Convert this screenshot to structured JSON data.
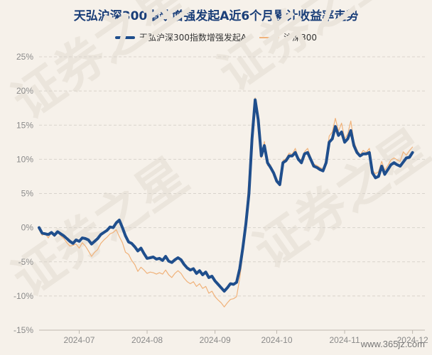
{
  "chart_data": {
    "type": "line",
    "title": "天弘沪深300指数增强发起A近6个月累计收益率走势",
    "ylim": [
      -15,
      25
    ],
    "yticks": [
      -15,
      -10,
      -5,
      0,
      5,
      10,
      15,
      20,
      25
    ],
    "ytick_labels": [
      "-15%",
      "-10%",
      "-5%",
      "0%",
      "5%",
      "10%",
      "15%",
      "20%",
      "25%"
    ],
    "x_ticks": [
      {
        "label": "2024-07",
        "x": 13
      },
      {
        "label": "2024-08",
        "x": 35
      },
      {
        "label": "2024-09",
        "x": 57
      },
      {
        "label": "2024-10",
        "x": 77
      },
      {
        "label": "2024-11",
        "x": 99
      },
      {
        "label": "2024-12",
        "x": 121
      }
    ],
    "x_range": [
      0,
      125
    ],
    "grid": true,
    "legend_position": "top",
    "series": [
      {
        "name": "天弘沪深300指数增强发起A",
        "color": "#1f4e8c",
        "points": [
          [
            0,
            0
          ],
          [
            1,
            -0.8
          ],
          [
            2,
            -0.9
          ],
          [
            3,
            -1.0
          ],
          [
            4,
            -0.7
          ],
          [
            5,
            -1.1
          ],
          [
            6,
            -0.6
          ],
          [
            7,
            -0.9
          ],
          [
            8,
            -1.2
          ],
          [
            9,
            -1.6
          ],
          [
            10,
            -2.0
          ],
          [
            11,
            -2.3
          ],
          [
            12,
            -1.8
          ],
          [
            13,
            -2.0
          ],
          [
            14,
            -1.5
          ],
          [
            15,
            -1.6
          ],
          [
            16,
            -1.8
          ],
          [
            17,
            -2.4
          ],
          [
            18,
            -2.0
          ],
          [
            19,
            -1.6
          ],
          [
            20,
            -1.0
          ],
          [
            21,
            -0.7
          ],
          [
            22,
            -0.4
          ],
          [
            23,
            0.1
          ],
          [
            24,
            0.0
          ],
          [
            25,
            0.7
          ],
          [
            26,
            1.1
          ],
          [
            27,
            0.0
          ],
          [
            28,
            -1.2
          ],
          [
            29,
            -2.1
          ],
          [
            30,
            -2.3
          ],
          [
            31,
            -2.8
          ],
          [
            32,
            -3.4
          ],
          [
            33,
            -3.0
          ],
          [
            34,
            -3.8
          ],
          [
            35,
            -4.5
          ],
          [
            36,
            -4.4
          ],
          [
            37,
            -4.3
          ],
          [
            38,
            -4.6
          ],
          [
            39,
            -4.5
          ],
          [
            40,
            -4.8
          ],
          [
            41,
            -4.2
          ],
          [
            42,
            -4.9
          ],
          [
            43,
            -5.1
          ],
          [
            44,
            -4.7
          ],
          [
            45,
            -4.4
          ],
          [
            46,
            -4.7
          ],
          [
            47,
            -5.4
          ],
          [
            48,
            -5.9
          ],
          [
            49,
            -6.2
          ],
          [
            50,
            -6.0
          ],
          [
            51,
            -6.7
          ],
          [
            52,
            -6.3
          ],
          [
            53,
            -6.9
          ],
          [
            54,
            -6.5
          ],
          [
            55,
            -7.3
          ],
          [
            56,
            -7.1
          ],
          [
            57,
            -7.8
          ],
          [
            58,
            -8.3
          ],
          [
            59,
            -8.8
          ],
          [
            60,
            -9.3
          ],
          [
            61,
            -8.8
          ],
          [
            62,
            -8.2
          ],
          [
            63,
            -8.3
          ],
          [
            64,
            -8.0
          ],
          [
            65,
            -6.0
          ],
          [
            66,
            -3.0
          ],
          [
            67,
            0.5
          ],
          [
            68,
            5.0
          ],
          [
            69,
            13.0
          ],
          [
            70,
            18.7
          ],
          [
            71,
            15.8
          ],
          [
            72,
            10.5
          ],
          [
            73,
            12.0
          ],
          [
            74,
            9.5
          ],
          [
            75,
            8.8
          ],
          [
            76,
            8.0
          ],
          [
            77,
            6.8
          ],
          [
            78,
            6.3
          ],
          [
            79,
            9.5
          ],
          [
            80,
            9.8
          ],
          [
            81,
            10.5
          ],
          [
            82,
            10.5
          ],
          [
            83,
            11.0
          ],
          [
            84,
            10.0
          ],
          [
            85,
            9.5
          ],
          [
            86,
            10.8
          ],
          [
            87,
            11.0
          ],
          [
            88,
            10.0
          ],
          [
            89,
            9.0
          ],
          [
            90,
            8.8
          ],
          [
            91,
            8.5
          ],
          [
            92,
            8.3
          ],
          [
            93,
            9.5
          ],
          [
            94,
            12.5
          ],
          [
            95,
            13.0
          ],
          [
            96,
            14.8
          ],
          [
            97,
            13.5
          ],
          [
            98,
            14.0
          ],
          [
            99,
            12.5
          ],
          [
            100,
            13.0
          ],
          [
            101,
            14.2
          ],
          [
            102,
            12.0
          ],
          [
            103,
            11.0
          ],
          [
            104,
            10.5
          ],
          [
            105,
            10.8
          ],
          [
            106,
            10.8
          ],
          [
            107,
            11.0
          ],
          [
            108,
            8.0
          ],
          [
            109,
            7.3
          ],
          [
            110,
            7.5
          ],
          [
            111,
            9.0
          ],
          [
            112,
            7.8
          ],
          [
            113,
            8.5
          ],
          [
            114,
            9.2
          ],
          [
            115,
            9.5
          ],
          [
            116,
            9.2
          ],
          [
            117,
            9.0
          ],
          [
            118,
            9.6
          ],
          [
            119,
            10.2
          ],
          [
            120,
            10.3
          ],
          [
            121,
            11.0
          ]
        ]
      },
      {
        "name": "沪深300",
        "color": "#f0b27a",
        "points": [
          [
            0,
            -0.3
          ],
          [
            1,
            -1.1
          ],
          [
            2,
            -0.9
          ],
          [
            3,
            -1.5
          ],
          [
            4,
            -0.7
          ],
          [
            5,
            -1.3
          ],
          [
            6,
            -0.6
          ],
          [
            7,
            -1.2
          ],
          [
            8,
            -1.6
          ],
          [
            9,
            -2.2
          ],
          [
            10,
            -2.7
          ],
          [
            11,
            -2.6
          ],
          [
            12,
            -2.4
          ],
          [
            13,
            -3.0
          ],
          [
            14,
            -2.2
          ],
          [
            15,
            -2.7
          ],
          [
            16,
            -3.4
          ],
          [
            17,
            -4.2
          ],
          [
            18,
            -3.6
          ],
          [
            19,
            -3.2
          ],
          [
            20,
            -2.3
          ],
          [
            21,
            -1.8
          ],
          [
            22,
            -1.4
          ],
          [
            23,
            -0.9
          ],
          [
            24,
            -0.7
          ],
          [
            25,
            -0.3
          ],
          [
            26,
            -1.3
          ],
          [
            27,
            -2.2
          ],
          [
            28,
            -3.6
          ],
          [
            29,
            -3.9
          ],
          [
            30,
            -4.8
          ],
          [
            31,
            -5.4
          ],
          [
            32,
            -6.4
          ],
          [
            33,
            -5.8
          ],
          [
            34,
            -6.2
          ],
          [
            35,
            -6.7
          ],
          [
            36,
            -6.5
          ],
          [
            37,
            -6.6
          ],
          [
            38,
            -6.8
          ],
          [
            39,
            -6.6
          ],
          [
            40,
            -6.8
          ],
          [
            41,
            -6.2
          ],
          [
            42,
            -6.9
          ],
          [
            43,
            -7.3
          ],
          [
            44,
            -6.7
          ],
          [
            45,
            -6.3
          ],
          [
            46,
            -6.7
          ],
          [
            47,
            -7.4
          ],
          [
            48,
            -7.9
          ],
          [
            49,
            -8.2
          ],
          [
            50,
            -7.9
          ],
          [
            51,
            -8.6
          ],
          [
            52,
            -8.2
          ],
          [
            53,
            -8.9
          ],
          [
            54,
            -8.6
          ],
          [
            55,
            -9.6
          ],
          [
            56,
            -9.3
          ],
          [
            57,
            -10.1
          ],
          [
            58,
            -10.6
          ],
          [
            59,
            -11.0
          ],
          [
            60,
            -11.6
          ],
          [
            61,
            -11.0
          ],
          [
            62,
            -10.5
          ],
          [
            63,
            -10.4
          ],
          [
            64,
            -10.1
          ],
          [
            65,
            -7.4
          ],
          [
            66,
            -3.9
          ],
          [
            67,
            1.1
          ],
          [
            68,
            7.4
          ],
          [
            69,
            15.0
          ],
          [
            70,
            19.0
          ],
          [
            71,
            15.0
          ],
          [
            72,
            10.2
          ],
          [
            73,
            12.6
          ],
          [
            74,
            9.1
          ],
          [
            75,
            9.2
          ],
          [
            76,
            7.6
          ],
          [
            77,
            6.6
          ],
          [
            78,
            6.1
          ],
          [
            79,
            9.8
          ],
          [
            80,
            10.1
          ],
          [
            81,
            10.9
          ],
          [
            82,
            10.7
          ],
          [
            83,
            11.6
          ],
          [
            84,
            10.2
          ],
          [
            85,
            9.9
          ],
          [
            86,
            11.1
          ],
          [
            87,
            11.6
          ],
          [
            88,
            10.3
          ],
          [
            89,
            9.3
          ],
          [
            90,
            9.1
          ],
          [
            91,
            8.8
          ],
          [
            92,
            8.6
          ],
          [
            93,
            10.0
          ],
          [
            94,
            13.4
          ],
          [
            95,
            14.0
          ],
          [
            96,
            16.0
          ],
          [
            97,
            14.1
          ],
          [
            98,
            15.3
          ],
          [
            99,
            13.0
          ],
          [
            100,
            13.7
          ],
          [
            101,
            15.6
          ],
          [
            102,
            12.6
          ],
          [
            103,
            11.4
          ],
          [
            104,
            10.6
          ],
          [
            105,
            11.3
          ],
          [
            106,
            11.0
          ],
          [
            107,
            11.6
          ],
          [
            108,
            8.4
          ],
          [
            109,
            7.9
          ],
          [
            110,
            8.2
          ],
          [
            111,
            9.7
          ],
          [
            112,
            8.4
          ],
          [
            113,
            9.1
          ],
          [
            114,
            9.9
          ],
          [
            115,
            10.2
          ],
          [
            116,
            9.9
          ],
          [
            117,
            9.7
          ],
          [
            118,
            11.1
          ],
          [
            119,
            10.6
          ],
          [
            120,
            11.3
          ],
          [
            121,
            11.8
          ]
        ]
      }
    ]
  },
  "watermark": {
    "site": "www.365jz.com",
    "background_text": "证券之星"
  }
}
